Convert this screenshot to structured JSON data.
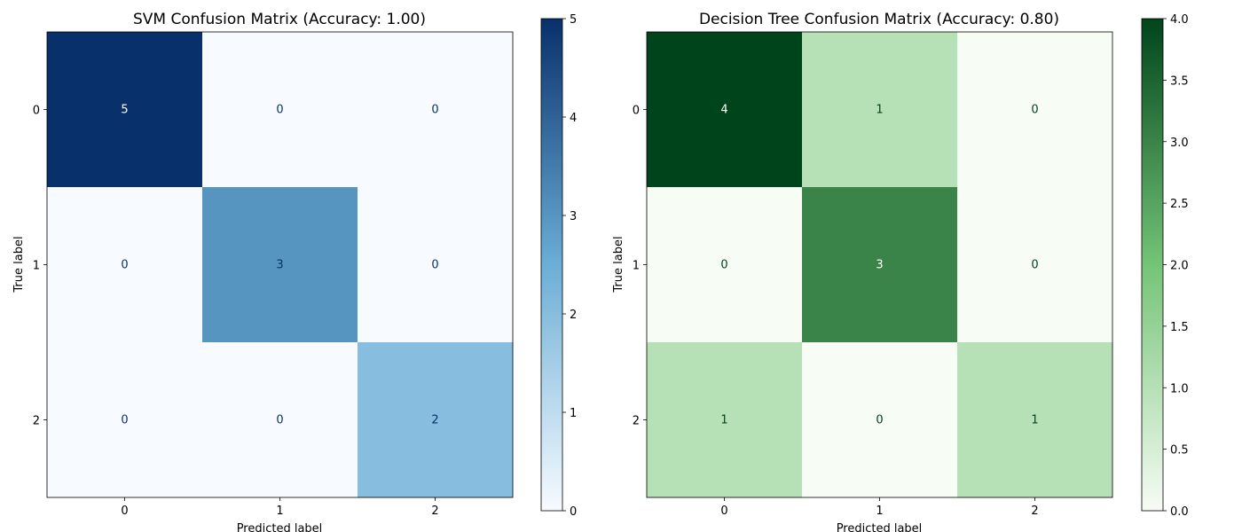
{
  "chart_data": [
    {
      "type": "heatmap",
      "title": "SVM Confusion Matrix (Accuracy: 1.00)",
      "xlabel": "Predicted label",
      "ylabel": "True label",
      "x_categories": [
        "0",
        "1",
        "2"
      ],
      "y_categories": [
        "0",
        "1",
        "2"
      ],
      "matrix": [
        [
          5,
          0,
          0
        ],
        [
          0,
          3,
          0
        ],
        [
          0,
          0,
          2
        ]
      ],
      "colormap": "Blues",
      "colorbar": {
        "min": 0,
        "max": 5,
        "ticks": [
          0,
          1,
          2,
          3,
          4,
          5
        ],
        "tick_labels": [
          "0",
          "1",
          "2",
          "3",
          "4",
          "5"
        ]
      },
      "colors": {
        "low": "#f7fbff",
        "mid": "#6baed6",
        "high": "#08306b"
      }
    },
    {
      "type": "heatmap",
      "title": "Decision Tree Confusion Matrix (Accuracy: 0.80)",
      "xlabel": "Predicted label",
      "ylabel": "True label",
      "x_categories": [
        "0",
        "1",
        "2"
      ],
      "y_categories": [
        "0",
        "1",
        "2"
      ],
      "matrix": [
        [
          4,
          1,
          0
        ],
        [
          0,
          3,
          0
        ],
        [
          1,
          0,
          1
        ]
      ],
      "colormap": "Greens",
      "colorbar": {
        "min": 0,
        "max": 4,
        "ticks": [
          0,
          0.5,
          1,
          1.5,
          2,
          2.5,
          3,
          3.5,
          4
        ],
        "tick_labels": [
          "0.0",
          "0.5",
          "1.0",
          "1.5",
          "2.0",
          "2.5",
          "3.0",
          "3.5",
          "4.0"
        ]
      },
      "colors": {
        "low": "#f7fcf5",
        "mid": "#74c476",
        "high": "#00441b"
      }
    }
  ]
}
